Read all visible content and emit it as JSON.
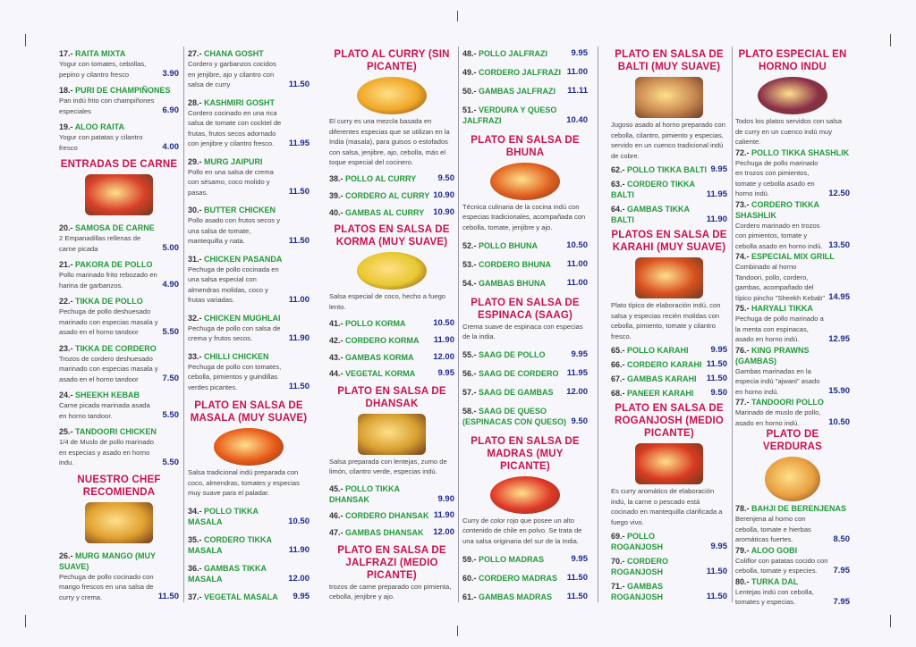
{
  "colors": {
    "section_title": "#c8124e",
    "item_name": "#239a3a",
    "price": "#1c2a8e"
  },
  "columns": [
    [
      {
        "type": "item",
        "num": "17.-",
        "name": "RAITA MIXTA",
        "desc": "Yogur con tomates, cebollas, pepino y cilantro fresco",
        "price": "3.90"
      },
      {
        "type": "item",
        "num": "18.-",
        "name": "PURI DE CHAMPIÑONES",
        "desc": "Pan indú frito con champiñones especiales",
        "price": "6.90"
      },
      {
        "type": "item",
        "num": "19.-",
        "name": "ALOO RAITA",
        "desc": "Yogur con patatas y cilantro fresco",
        "price": "4.00"
      },
      {
        "type": "section",
        "title": "ENTRADAS DE CARNE",
        "image": "fried-meat-photo",
        "img_color": "#d8402a",
        "img_shape": "rect"
      },
      {
        "type": "item",
        "num": "20.-",
        "name": "SAMOSA DE CARNE",
        "desc": "2 Empanadillas rellenas de carne picada",
        "price": "5.00"
      },
      {
        "type": "item",
        "num": "21.-",
        "name": "PAKORA DE POLLO",
        "desc": "Pollo marinado frito rebozado en harina de garbanzos.",
        "price": "4.90"
      },
      {
        "type": "item",
        "num": "22.-",
        "name": "TIKKA DE POLLO",
        "desc": "Pechuga de pollo deshuesado marinado con especias masala y asado en el horno tandoor",
        "price": "5.50"
      },
      {
        "type": "item",
        "num": "23.-",
        "name": "TIKKA DE CORDERO",
        "desc": "Trozos de cordero deshuesado marinado con especias masala y asado en el horno tandoor",
        "price": "7.50"
      },
      {
        "type": "item",
        "num": "24.-",
        "name": "SHEEKH KEBAB",
        "desc": "Carne picada marinada asada en horno tandoor.",
        "price": "5.50"
      },
      {
        "type": "item",
        "num": "25.-",
        "name": "TANDOORI CHICKEN",
        "desc": "1/4 de Muslo de pollo marinado en especias y asado en horno indu.",
        "price": "5.50"
      },
      {
        "type": "section",
        "title": "NUESTRO CHEF RECOMIENDA",
        "image": "curry-dishes-photo",
        "img_color": "#e0a030",
        "img_shape": "rect"
      },
      {
        "type": "item",
        "num": "26.-",
        "name": "MURG MANGO (MUY SUAVE)",
        "desc": "Pechuga de pollo cocinado con mango frescos en una salsa de curry y crema.",
        "price": "11.50"
      }
    ],
    [
      {
        "type": "item",
        "num": "27.-",
        "name": "CHANA GOSHT",
        "desc": "Cordero y garbanzos cocidos en jenjibre, ajo y cilantro con salsa de curry",
        "price": "11.50"
      },
      {
        "type": "item",
        "num": "28.-",
        "name": "KASHMIRI GOSHT",
        "desc": "Cordero cocinado en una rica salsa de tomate con cocktel de frutas, frutos secos adornado con jenjibre y cilantro fresco.",
        "price": "11.95"
      },
      {
        "type": "item",
        "num": "29.-",
        "name": "MURG JAIPURI",
        "desc": "Pollo en una salsa de crema con sésamo, coco molido y pasas.",
        "price": "11.50"
      },
      {
        "type": "item",
        "num": "30.-",
        "name": "BUTTER CHICKEN",
        "desc": "Pollo asado con frutos secos y una salsa de tomate, mantequilla y nata.",
        "price": "11.50"
      },
      {
        "type": "item",
        "num": "31.-",
        "name": "CHICKEN PASANDA",
        "desc": "Pechuga de pollo cocinada en una salsa especial con almendras molidas, coco y frutas variadas.",
        "price": "11.00"
      },
      {
        "type": "item",
        "num": "32.-",
        "name": "CHICKEN MUGHLAI",
        "desc": "Pechuga de pollo con salsa de crema y frutos secos.",
        "price": "11.90"
      },
      {
        "type": "item",
        "num": "33.-",
        "name": "CHILLI CHICKEN",
        "desc": "Pechuga de pollo con tomates, cebolla, pimientos y guindillas verdes picantes.",
        "price": "11.50"
      },
      {
        "type": "section",
        "title": "PLATO EN SALSA DE MASALA (MUY SUAVE)",
        "image": "masala-pan-photo",
        "img_color": "#e85a18",
        "img_shape": "oval",
        "desc": "Salsa tradicional indú preparada con coco, almendras, tomates y especias muy suave para el paladar."
      },
      {
        "type": "item",
        "num": "34.-",
        "name": "POLLO TIKKA MASALA",
        "price": "10.50"
      },
      {
        "type": "item",
        "num": "35.-",
        "name": "CORDERO TIKKA MASALA",
        "price": "11.90"
      },
      {
        "type": "item",
        "num": "36.-",
        "name": "GAMBAS TIKKA MASALA",
        "price": "12.00"
      },
      {
        "type": "item",
        "num": "37.-",
        "name": "VEGETAL MASALA",
        "price": "9.95"
      }
    ],
    [
      {
        "type": "section",
        "title": "PLATO AL CURRY (SIN PICANTE)",
        "image": "curry-bowl-photo",
        "img_color": "#f0a828",
        "img_shape": "oval",
        "desc": "El curry es una mezcla basada en diferentes especias que se utilizan en la India (masala), para guisos o estofados con salsa, jenjibre, ajo, cebolla, más el toque especial del cocinero."
      },
      {
        "type": "item",
        "num": "38.-",
        "name": "POLLO AL CURRY",
        "price": "9.50"
      },
      {
        "type": "item",
        "num": "39.-",
        "name": "CORDERO AL CURRY",
        "price": "10.90"
      },
      {
        "type": "item",
        "num": "40.-",
        "name": "GAMBAS AL CURRY",
        "price": "10.90"
      },
      {
        "type": "section",
        "title": "PLATOS EN SALSA DE KORMA (MUY SUAVE)",
        "image": "korma-bowl-photo",
        "img_color": "#e8c830",
        "img_shape": "oval",
        "desc": "Salsa especial de coco, hecho a fuego lento."
      },
      {
        "type": "item",
        "num": "41.-",
        "name": "POLLO KORMA",
        "price": "10.50"
      },
      {
        "type": "item",
        "num": "42.-",
        "name": "CORDERO KORMA",
        "price": "11.90"
      },
      {
        "type": "item",
        "num": "43.-",
        "name": "GAMBAS KORMA",
        "price": "12.00"
      },
      {
        "type": "item",
        "num": "44.-",
        "name": "VEGETAL KORMA",
        "price": "9.95"
      },
      {
        "type": "section",
        "title": "PLATO EN SALSA DE DHANSAK",
        "image": "dhansak-bowl-photo",
        "img_color": "#d8a030",
        "img_shape": "rect",
        "desc": "Salsa preparada con lentejas, zumo de limón, cilantro verde, especias indú."
      },
      {
        "type": "item",
        "num": "45.-",
        "name": "POLLO TIKKA DHANSAK",
        "price": "9.90"
      },
      {
        "type": "item",
        "num": "46.-",
        "name": "CORDERO DHANSAK",
        "price": "11.90"
      },
      {
        "type": "item",
        "num": "47.-",
        "name": "GAMBAS DHANSAK",
        "price": "12.00"
      },
      {
        "type": "section",
        "title": "PLATO EN SALSA DE JALFRAZI (MEDIO PICANTE)",
        "desc": "trozos de carne preparado con pimienta, cebolla, jenjibre y ajo."
      }
    ],
    [
      {
        "type": "item",
        "num": "48.-",
        "name": "POLLO JALFRAZI",
        "price": "9.95"
      },
      {
        "type": "item",
        "num": "49.-",
        "name": "CORDERO JALFRAZI",
        "price": "11.00"
      },
      {
        "type": "item",
        "num": "50.-",
        "name": "GAMBAS JALFRAZI",
        "price": "11.11"
      },
      {
        "type": "item",
        "num": "51.-",
        "name": "VERDURA Y QUESO JALFRAZI",
        "price": "10.40"
      },
      {
        "type": "section",
        "title": "PLATO EN SALSA DE BHUNA",
        "image": "bhuna-photo",
        "img_color": "#e06020",
        "img_shape": "oval",
        "desc": "Técnica culinaria de la cocina indú con especias tradicionales, acompañada con cebolla, tomate, jenjibre y ajo."
      },
      {
        "type": "item",
        "num": "52.-",
        "name": "POLLO BHUNA",
        "price": "10.50"
      },
      {
        "type": "item",
        "num": "53.-",
        "name": "CORDERO BHUNA",
        "price": "11.00"
      },
      {
        "type": "item",
        "num": "54.-",
        "name": "GAMBAS BHUNA",
        "price": "11.00"
      },
      {
        "type": "section",
        "title": "PLATO EN SALSA DE ESPINACA (SAAG)",
        "desc": "Crema suave de espinaca con especias de la india."
      },
      {
        "type": "item",
        "num": "55.-",
        "name": "SAAG DE POLLO",
        "price": "9.95"
      },
      {
        "type": "item",
        "num": "56.-",
        "name": "SAAG DE CORDERO",
        "price": "11.95"
      },
      {
        "type": "item",
        "num": "57.-",
        "name": "SAAG DE GAMBAS",
        "price": "12.00"
      },
      {
        "type": "item",
        "num": "58.-",
        "name": "SAAG DE QUESO (ESPINACAS CON QUESO)",
        "price": "9.50"
      },
      {
        "type": "section",
        "title": "PLATO EN SALSA DE MADRAS (MUY PICANTE)",
        "image": "madras-bowl-photo",
        "img_color": "#e03828",
        "img_shape": "oval",
        "desc": "Curry de color rojo que posee un alto contenido de chile en polvo. Se trata de una salsa originaria del sur de la India."
      },
      {
        "type": "item",
        "num": "59.-",
        "name": "POLLO MADRAS",
        "price": "9.95"
      },
      {
        "type": "item",
        "num": "60.-",
        "name": "CORDERO MADRAS",
        "price": "11.50"
      },
      {
        "type": "item",
        "num": "61.-",
        "name": "GAMBAS MADRAS",
        "price": "11.50"
      }
    ],
    [
      {
        "type": "section",
        "title": "PLATO EN SALSA DE BALTI (MUY SUAVE)",
        "image": "balti-copper-bowl-photo",
        "img_color": "#c88850",
        "img_shape": "rect",
        "desc": "Jugoso asado al horno preparado con cebolla, cilantro, pimiento y especias, servido en un cuenco tradicional indú de cobre."
      },
      {
        "type": "item",
        "num": "62.-",
        "name": "POLLO TIKKA BALTI",
        "price": "9.95"
      },
      {
        "type": "item",
        "num": "63.-",
        "name": "CORDERO TIKKA BALTI",
        "price": "11.95"
      },
      {
        "type": "item",
        "num": "64.-",
        "name": "GAMBAS TIKKA BALTI",
        "price": "11.90"
      },
      {
        "type": "section",
        "title": "PLATOS EN SALSA DE KARAHI (MUY SUAVE)",
        "image": "karahi-dish-photo",
        "img_color": "#d85020",
        "img_shape": "rect",
        "desc": "Plato típico de elaboración indú, con salsa y especias recién molidas con cebolla, pimiento, tomate y cilantro fresco."
      },
      {
        "type": "item",
        "num": "65.-",
        "name": "POLLO KARAHI",
        "price": "9.95"
      },
      {
        "type": "item",
        "num": "66.-",
        "name": "CORDERO KARAHI",
        "price": "11.50"
      },
      {
        "type": "item",
        "num": "67.-",
        "name": "GAMBAS KARAHI",
        "price": "11.50"
      },
      {
        "type": "item",
        "num": "68.-",
        "name": "PANEER KARAHI",
        "price": "9.50"
      },
      {
        "type": "section",
        "title": "PLATO EN SALSA DE ROGANJOSH (MEDIO PICANTE)",
        "image": "roganjosh-photo",
        "img_color": "#d83a20",
        "img_shape": "rect",
        "desc": "Es curry aromático de elaboración indú, la carne o pescado está cocinado en mantequilla clarificada a fuego vivo."
      },
      {
        "type": "item",
        "num": "69.-",
        "name": "POLLO ROGANJOSH",
        "price": "9.95"
      },
      {
        "type": "item",
        "num": "70.-",
        "name": "CORDERO ROGANJOSH",
        "price": "11.50"
      },
      {
        "type": "item",
        "num": "71.-",
        "name": "GAMBAS ROGANJOSH",
        "price": "11.50"
      }
    ],
    [
      {
        "type": "section",
        "title": "PLATO ESPECIAL EN HORNO INDU",
        "image": "tandoori-platter-photo",
        "img_color": "#8a3048",
        "img_shape": "oval",
        "desc": "Todos los platos servidos con salsa de curry en un cuenco indú muy caliente."
      },
      {
        "type": "item",
        "num": "72.-",
        "name": "POLLO TIKKA SHASHLIK",
        "desc": "Pechuga de pollo marinado en trozos con pimientos, tomate y cebolla asado en horno indú.",
        "price": "12.50"
      },
      {
        "type": "item",
        "num": "73.-",
        "name": "CORDERO TIKKA SHASHLIK",
        "desc": "Cordero marinado en trozos con pimientos, tomate y cebolla asado en horno indú.",
        "price": "13.50"
      },
      {
        "type": "item",
        "num": "74.-",
        "name": "ESPECIAL MIX GRILL",
        "desc": "Combinado al horno Tandoori, pollo, cordero, gambas, acompañado del típico pincho \"Sheekh Kebab\"",
        "price": "14.95"
      },
      {
        "type": "item",
        "num": "75.-",
        "name": "HARYALI TIKKA",
        "desc": "Pechuga de pollo marinado a la menta con espinacas, asado en horno indú.",
        "price": "12.95"
      },
      {
        "type": "item",
        "num": "76.-",
        "name": "KING PRAWNS (GAMBAS)",
        "desc": "Gambas marinadas en la especia indú \"ajwani\" asado en horno indú.",
        "price": "15.90"
      },
      {
        "type": "item",
        "num": "77.-",
        "name": "TANDOORI POLLO",
        "desc": "Marinado de muslo de pollo, asado en horno indú.",
        "price": "10.50"
      },
      {
        "type": "section",
        "title": "PLATO DE VERDURAS",
        "image": "vegetable-bowls-photo",
        "img_color": "#e8a040",
        "img_shape": "circle"
      },
      {
        "type": "item",
        "num": "78.-",
        "name": "BAHJI DE BERENJENAS",
        "desc": "Berenjena al horno con cebolla, tomate e hierbas aromáticas fuertes.",
        "price": "8.50"
      },
      {
        "type": "item",
        "num": "79.-",
        "name": "ALOO GOBI",
        "desc": "Coliflor con patatas cocido con cebolla, tomate y especies.",
        "price": "7.95"
      },
      {
        "type": "item",
        "num": "80.-",
        "name": "TURKA DAL",
        "desc": "Lentejas indú con cebolla, tomates y especias.",
        "price": "7.95"
      }
    ]
  ]
}
